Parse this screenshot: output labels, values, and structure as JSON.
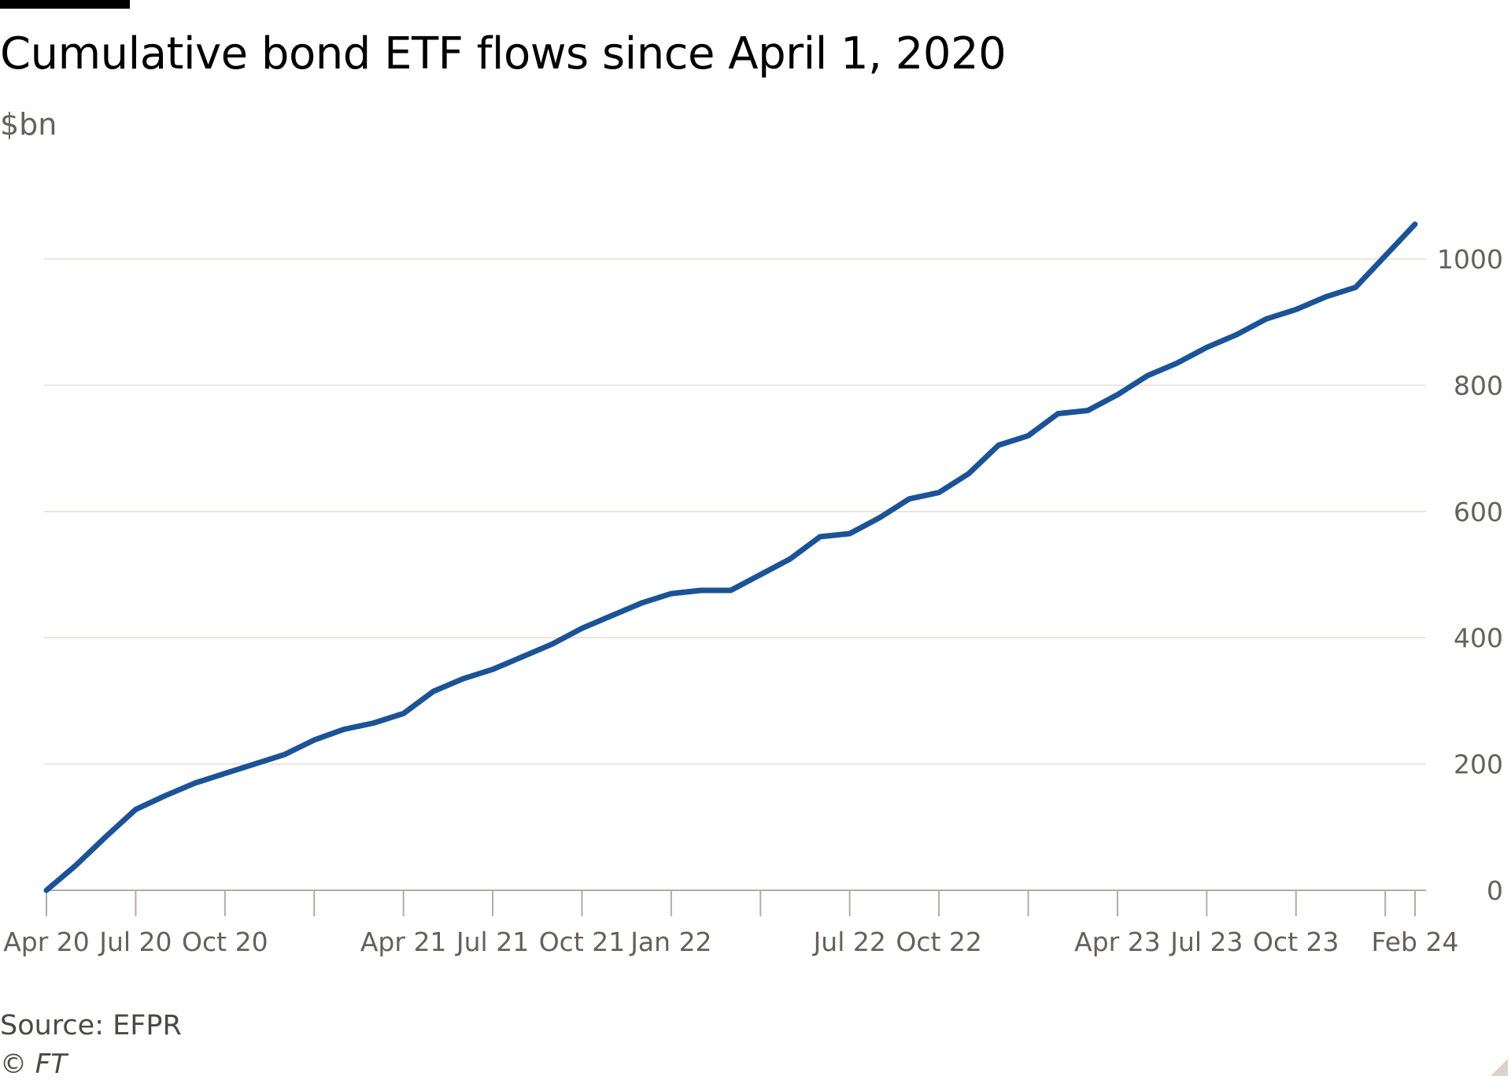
{
  "header": {
    "title": "Cumulative bond ETF flows since April 1, 2020",
    "unit": "$bn"
  },
  "footer": {
    "source": "Source: EFPR",
    "credit": "© FT"
  },
  "colors": {
    "line": "#1b5396",
    "grid": "#e6dcd2",
    "axis": "#b3aca6",
    "text_muted": "#66605c"
  },
  "chart_data": {
    "type": "line",
    "title": "Cumulative bond ETF flows since April 1, 2020",
    "ylabel": "$bn",
    "xlabel": "",
    "ylim": [
      0,
      1000
    ],
    "y_axis_side": "right",
    "grid": true,
    "x_ticks": [
      "Apr 20",
      "Jul 20",
      "Oct 20",
      "Apr 21",
      "Jul 21",
      "Oct 21",
      "Jan 22",
      "Jul 22",
      "Oct 22",
      "Apr 23",
      "Jul 23",
      "Oct 23",
      "Feb 24"
    ],
    "y_ticks": [
      "0",
      "200",
      "400",
      "600",
      "800",
      "1000"
    ],
    "series": [
      {
        "values_x": [
          "2020-04",
          "2020-05",
          "2020-06",
          "2020-07",
          "2020-08",
          "2020-09",
          "2020-10",
          "2020-11",
          "2020-12",
          "2021-01",
          "2021-02",
          "2021-03",
          "2021-04",
          "2021-05",
          "2021-06",
          "2021-07",
          "2021-08",
          "2021-09",
          "2021-10",
          "2021-11",
          "2021-12",
          "2022-01",
          "2022-02",
          "2022-03",
          "2022-04",
          "2022-05",
          "2022-06",
          "2022-07",
          "2022-08",
          "2022-09",
          "2022-10",
          "2022-11",
          "2022-12",
          "2023-01",
          "2023-02",
          "2023-03",
          "2023-04",
          "2023-05",
          "2023-06",
          "2023-07",
          "2023-08",
          "2023-09",
          "2023-10",
          "2023-11",
          "2023-12",
          "2024-01",
          "2024-02"
        ],
        "values": [
          0,
          40,
          85,
          128,
          150,
          170,
          185,
          200,
          215,
          238,
          255,
          265,
          280,
          315,
          335,
          350,
          370,
          390,
          415,
          435,
          455,
          470,
          475,
          475,
          500,
          525,
          560,
          565,
          590,
          620,
          630,
          660,
          705,
          720,
          755,
          760,
          785,
          815,
          835,
          860,
          880,
          905,
          920,
          940,
          955,
          1005,
          1055
        ]
      }
    ]
  }
}
